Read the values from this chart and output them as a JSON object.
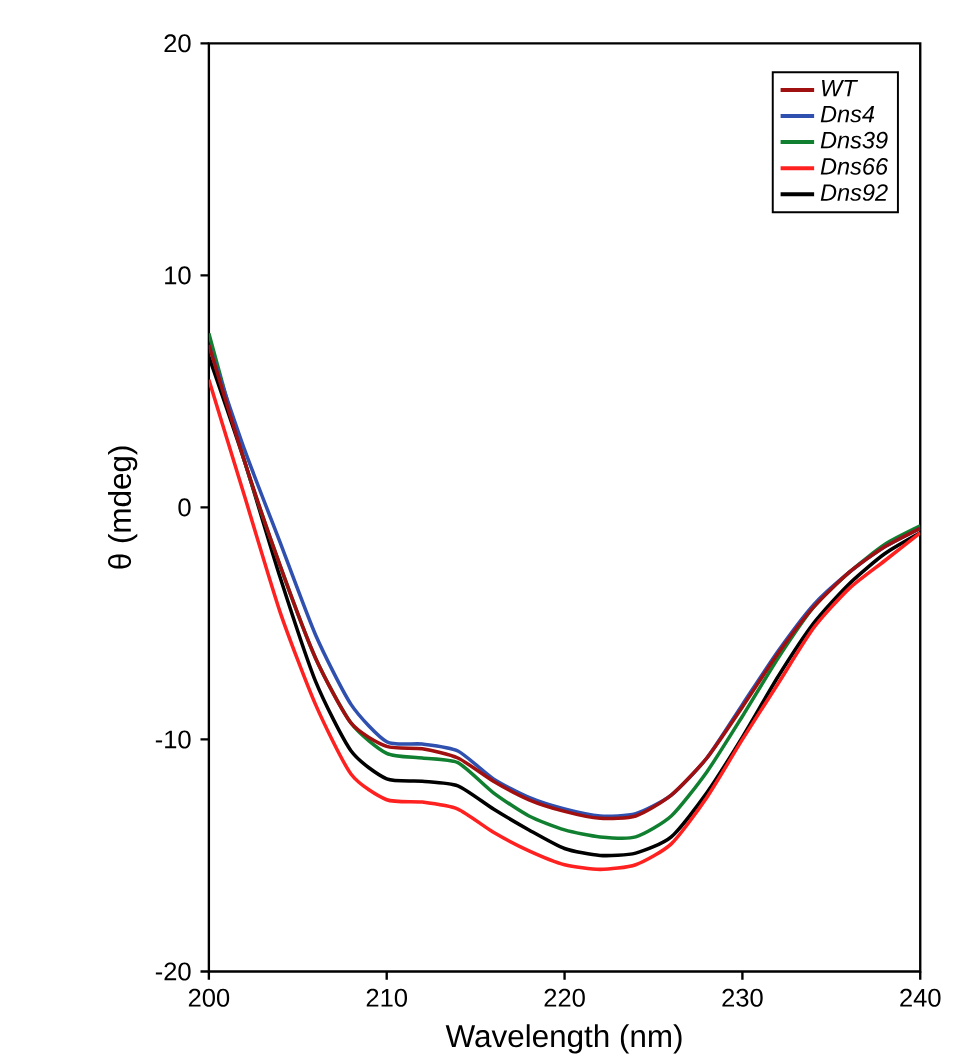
{
  "chart_data": {
    "type": "line",
    "xlabel": "Wavelength (nm)",
    "ylabel": "θ  (mdeg)",
    "x": [
      200,
      202,
      204,
      206,
      208,
      210,
      212,
      214,
      216,
      218,
      220,
      222,
      224,
      226,
      228,
      230,
      232,
      234,
      236,
      238,
      240
    ],
    "series": [
      {
        "name": "WT",
        "color": "#a01010",
        "values": [
          7,
          2,
          -2.5,
          -6.5,
          -9.3,
          -10.3,
          -10.4,
          -10.8,
          -11.8,
          -12.6,
          -13.1,
          -13.4,
          -13.3,
          -12.4,
          -10.8,
          -8.6,
          -6.3,
          -4.3,
          -2.8,
          -1.7,
          -0.9
        ]
      },
      {
        "name": "Dns4",
        "color": "#3050b0",
        "values": [
          7,
          2.5,
          -1.5,
          -5.5,
          -8.5,
          -10.1,
          -10.2,
          -10.5,
          -11.7,
          -12.5,
          -13,
          -13.3,
          -13.2,
          -12.4,
          -10.8,
          -8.5,
          -6.2,
          -4.2,
          -2.8,
          -1.7,
          -0.9
        ]
      },
      {
        "name": "Dns39",
        "color": "#108030",
        "values": [
          7.5,
          2,
          -2.5,
          -6.5,
          -9.3,
          -10.6,
          -10.8,
          -11,
          -12.3,
          -13.3,
          -13.9,
          -14.2,
          -14.2,
          -13.3,
          -11.4,
          -9,
          -6.5,
          -4.3,
          -2.8,
          -1.6,
          -0.8
        ]
      },
      {
        "name": "Dns66",
        "color": "#ff2020",
        "values": [
          5.5,
          0.5,
          -4.5,
          -8.5,
          -11.5,
          -12.6,
          -12.7,
          -13,
          -14,
          -14.8,
          -15.4,
          -15.6,
          -15.4,
          -14.5,
          -12.5,
          -10,
          -7.6,
          -5.2,
          -3.5,
          -2.3,
          -1.1
        ]
      },
      {
        "name": "Dns92",
        "color": "#000000",
        "values": [
          6.5,
          2,
          -3,
          -7.5,
          -10.5,
          -11.7,
          -11.8,
          -12,
          -13,
          -13.9,
          -14.7,
          -15,
          -14.9,
          -14.2,
          -12.3,
          -9.9,
          -7.3,
          -5,
          -3.3,
          -2,
          -1.1
        ]
      }
    ],
    "xlim": [
      200,
      240
    ],
    "ylim": [
      -20,
      20
    ],
    "xticks": [
      200,
      210,
      220,
      230,
      240
    ],
    "yticks": [
      -20,
      -10,
      0,
      10,
      20
    ],
    "grid": false,
    "legend": "top right",
    "marker": "none",
    "line_style": "solid"
  }
}
